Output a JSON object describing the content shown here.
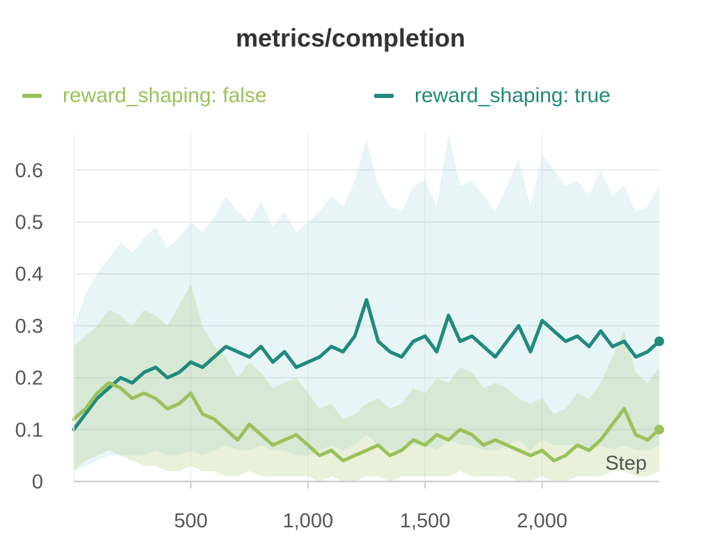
{
  "title": "metrics/completion",
  "colors": {
    "false_line": "#9bc15a",
    "true_line": "#208a7d",
    "false_band": "#9bc15a",
    "true_band": "#7fc7cf"
  },
  "chart_data": {
    "type": "line",
    "title": "metrics/completion",
    "xlabel": "Step",
    "ylabel": "",
    "xlim": [
      0,
      2500
    ],
    "ylim": [
      0,
      0.65
    ],
    "x_ticks": [
      500,
      1000,
      1500,
      2000
    ],
    "x_tick_labels": [
      "500",
      "1,000",
      "1,500",
      "2,000"
    ],
    "y_ticks": [
      0,
      0.1,
      0.2,
      0.3,
      0.4,
      0.5,
      0.6
    ],
    "y_tick_labels": [
      "0",
      "0.1",
      "0.2",
      "0.3",
      "0.4",
      "0.5",
      "0.6"
    ],
    "grid": true,
    "legend_position": "top",
    "series": [
      {
        "name": "reward_shaping: false",
        "color": "#9bc15a",
        "x": [
          0,
          50,
          100,
          150,
          200,
          250,
          300,
          350,
          400,
          450,
          500,
          550,
          600,
          650,
          700,
          750,
          800,
          850,
          900,
          950,
          1000,
          1050,
          1100,
          1150,
          1200,
          1250,
          1300,
          1350,
          1400,
          1450,
          1500,
          1550,
          1600,
          1650,
          1700,
          1750,
          1800,
          1850,
          1900,
          1950,
          2000,
          2050,
          2100,
          2150,
          2200,
          2250,
          2300,
          2350,
          2400,
          2450,
          2500
        ],
        "y": [
          0.12,
          0.14,
          0.17,
          0.19,
          0.18,
          0.16,
          0.17,
          0.16,
          0.14,
          0.15,
          0.17,
          0.13,
          0.12,
          0.1,
          0.08,
          0.11,
          0.09,
          0.07,
          0.08,
          0.09,
          0.07,
          0.05,
          0.06,
          0.04,
          0.05,
          0.06,
          0.07,
          0.05,
          0.06,
          0.08,
          0.07,
          0.09,
          0.08,
          0.1,
          0.09,
          0.07,
          0.08,
          0.07,
          0.06,
          0.05,
          0.06,
          0.04,
          0.05,
          0.07,
          0.06,
          0.08,
          0.11,
          0.14,
          0.09,
          0.08,
          0.1
        ],
        "lower": [
          0.02,
          0.04,
          0.05,
          0.06,
          0.05,
          0.04,
          0.03,
          0.03,
          0.02,
          0.02,
          0.03,
          0.02,
          0.02,
          0.01,
          0.01,
          0.02,
          0.01,
          0.01,
          0.01,
          0.01,
          0.01,
          0.0,
          0.01,
          0.0,
          0.0,
          0.01,
          0.01,
          0.0,
          0.01,
          0.01,
          0.01,
          0.01,
          0.01,
          0.02,
          0.01,
          0.01,
          0.01,
          0.01,
          0.0,
          0.0,
          0.01,
          0.0,
          0.0,
          0.01,
          0.01,
          0.01,
          0.02,
          0.02,
          0.01,
          0.01,
          0.02
        ],
        "upper": [
          0.26,
          0.28,
          0.3,
          0.33,
          0.32,
          0.3,
          0.33,
          0.32,
          0.3,
          0.34,
          0.38,
          0.3,
          0.26,
          0.24,
          0.2,
          0.23,
          0.21,
          0.18,
          0.19,
          0.2,
          0.17,
          0.14,
          0.15,
          0.12,
          0.13,
          0.15,
          0.16,
          0.14,
          0.15,
          0.18,
          0.17,
          0.2,
          0.19,
          0.22,
          0.21,
          0.18,
          0.19,
          0.18,
          0.16,
          0.15,
          0.16,
          0.13,
          0.14,
          0.17,
          0.16,
          0.19,
          0.24,
          0.29,
          0.21,
          0.19,
          0.22
        ]
      },
      {
        "name": "reward_shaping: true",
        "color": "#208a7d",
        "x": [
          0,
          50,
          100,
          150,
          200,
          250,
          300,
          350,
          400,
          450,
          500,
          550,
          600,
          650,
          700,
          750,
          800,
          850,
          900,
          950,
          1000,
          1050,
          1100,
          1150,
          1200,
          1250,
          1300,
          1350,
          1400,
          1450,
          1500,
          1550,
          1600,
          1650,
          1700,
          1750,
          1800,
          1850,
          1900,
          1950,
          2000,
          2050,
          2100,
          2150,
          2200,
          2250,
          2300,
          2350,
          2400,
          2450,
          2500
        ],
        "y": [
          0.1,
          0.13,
          0.16,
          0.18,
          0.2,
          0.19,
          0.21,
          0.22,
          0.2,
          0.21,
          0.23,
          0.22,
          0.24,
          0.26,
          0.25,
          0.24,
          0.26,
          0.23,
          0.25,
          0.22,
          0.23,
          0.24,
          0.26,
          0.25,
          0.28,
          0.35,
          0.27,
          0.25,
          0.24,
          0.27,
          0.28,
          0.25,
          0.32,
          0.27,
          0.28,
          0.26,
          0.24,
          0.27,
          0.3,
          0.25,
          0.31,
          0.29,
          0.27,
          0.28,
          0.26,
          0.29,
          0.26,
          0.27,
          0.24,
          0.25,
          0.27
        ],
        "lower": [
          0.02,
          0.03,
          0.04,
          0.05,
          0.05,
          0.05,
          0.05,
          0.06,
          0.05,
          0.05,
          0.06,
          0.05,
          0.06,
          0.07,
          0.06,
          0.06,
          0.07,
          0.06,
          0.06,
          0.05,
          0.05,
          0.06,
          0.07,
          0.06,
          0.07,
          0.09,
          0.07,
          0.06,
          0.06,
          0.07,
          0.07,
          0.06,
          0.08,
          0.07,
          0.07,
          0.06,
          0.06,
          0.07,
          0.08,
          0.06,
          0.08,
          0.07,
          0.07,
          0.07,
          0.06,
          0.07,
          0.06,
          0.07,
          0.06,
          0.06,
          0.07
        ],
        "upper": [
          0.3,
          0.36,
          0.4,
          0.43,
          0.46,
          0.44,
          0.47,
          0.49,
          0.45,
          0.47,
          0.5,
          0.48,
          0.51,
          0.55,
          0.52,
          0.5,
          0.54,
          0.49,
          0.52,
          0.48,
          0.5,
          0.52,
          0.55,
          0.53,
          0.58,
          0.66,
          0.57,
          0.53,
          0.52,
          0.57,
          0.58,
          0.53,
          0.67,
          0.57,
          0.58,
          0.55,
          0.52,
          0.57,
          0.62,
          0.53,
          0.63,
          0.6,
          0.57,
          0.58,
          0.55,
          0.6,
          0.55,
          0.57,
          0.52,
          0.53,
          0.57
        ]
      }
    ]
  }
}
